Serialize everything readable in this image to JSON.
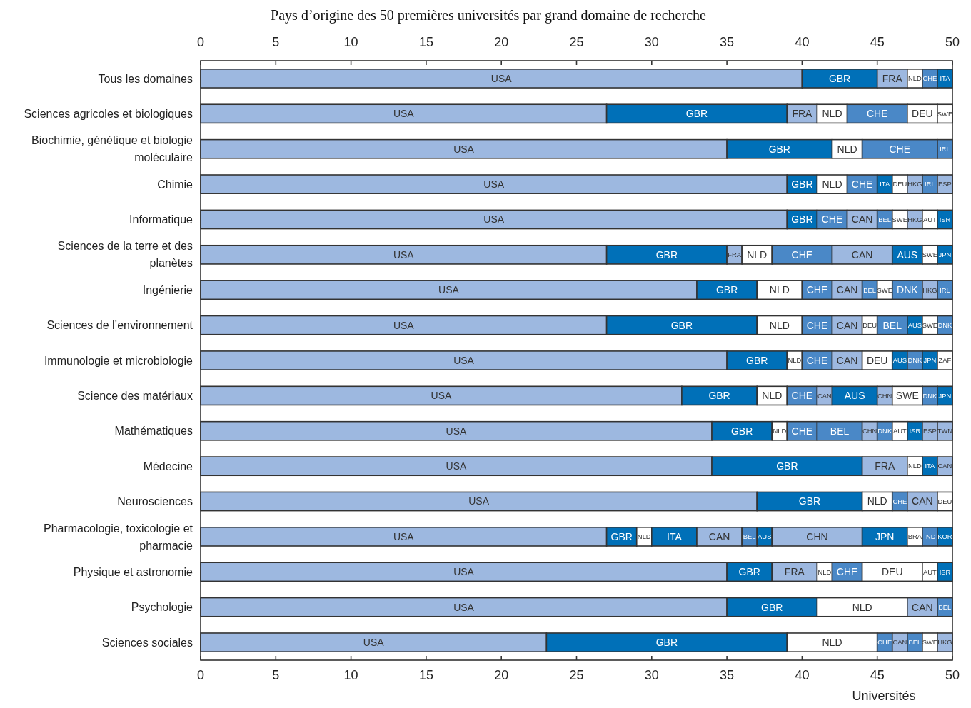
{
  "chart_data": {
    "type": "bar",
    "orientation": "horizontal",
    "stacked": true,
    "title": "Pays d’origine des 50 premières universités par grand domaine de recherche",
    "xlabel": "Universités",
    "categories": [
      "Tous les domaines",
      "Sciences agricoles et biologiques",
      "Biochimie, génétique et biologie moléculaire",
      "Chimie",
      "Informatique",
      "Sciences de la terre et des planètes",
      "Ingénierie",
      "Sciences de l’environnement",
      "Immunologie et microbiologie",
      "Science des matériaux",
      "Mathématiques",
      "Médecine",
      "Neurosciences",
      "Pharmacologie, toxicologie et pharmacie",
      "Physique et astronomie",
      "Psychologie",
      "Sciences sociales"
    ],
    "xlim": [
      0,
      50
    ],
    "xticks": [
      0,
      5,
      10,
      15,
      20,
      25,
      30,
      35,
      40,
      45,
      50
    ],
    "x2lim": [
      0,
      50
    ],
    "x2ticks": [
      0,
      5,
      10,
      15,
      20,
      25,
      30,
      35,
      40,
      45,
      50
    ],
    "grid": false,
    "series": [
      {
        "color": "#9db8e0",
        "values": [
          40,
          27,
          35,
          39,
          39,
          27,
          33,
          27,
          35,
          32,
          34,
          34,
          37,
          27,
          35,
          35,
          23
        ],
        "value_labels": [
          "USA",
          "USA",
          "USA",
          "USA",
          "USA",
          "USA",
          "USA",
          "USA",
          "USA",
          "USA",
          "USA",
          "USA",
          "USA",
          "USA",
          "USA",
          "USA",
          "USA"
        ]
      },
      {
        "color": "#0070b8",
        "values": [
          5,
          12,
          7,
          2,
          2,
          8,
          4,
          10,
          4,
          5,
          4,
          10,
          7,
          2,
          3,
          6,
          16
        ],
        "value_labels": [
          "GBR",
          "GBR",
          "GBR",
          "GBR",
          "GBR",
          "GBR",
          "GBR",
          "GBR",
          "GBR",
          "GBR",
          "GBR",
          "GBR",
          "GBR",
          "GBR",
          "GBR",
          "GBR",
          "GBR"
        ]
      },
      {
        "values": [
          2,
          2,
          2,
          2,
          2,
          1,
          3,
          3,
          1,
          2,
          1,
          3,
          2,
          1,
          3,
          6,
          6
        ],
        "value_labels": [
          "FRA",
          "FRA",
          "NLD",
          "NLD",
          "CHE",
          "FRA",
          "NLD",
          "NLD",
          "NLD",
          "NLD",
          "NLD",
          "FRA",
          "NLD",
          "NLD",
          "FRA",
          "NLD",
          "NLD"
        ],
        "colors": [
          "#9db8e0",
          "#9db8e0",
          "#ffffff",
          "#ffffff",
          "#4a88c7",
          "#9db8e0",
          "#ffffff",
          "#ffffff",
          "#ffffff",
          "#ffffff",
          "#ffffff",
          "#9db8e0",
          "#ffffff",
          "#ffffff",
          "#9db8e0",
          "#ffffff",
          "#ffffff"
        ]
      },
      {
        "values": [
          1,
          2,
          5,
          2,
          2,
          2,
          2,
          2,
          2,
          2,
          2,
          1,
          1,
          3,
          1,
          2,
          1
        ],
        "value_labels": [
          "NLD",
          "NLD",
          "CHE",
          "CHE",
          "CAN",
          "NLD",
          "CHE",
          "CHE",
          "CHE",
          "CHE",
          "CHE",
          "NLD",
          "CHE",
          "ITA",
          "NLD",
          "CAN",
          "CHE"
        ],
        "colors": [
          "#ffffff",
          "#ffffff",
          "#4a88c7",
          "#4a88c7",
          "#9db8e0",
          "#ffffff",
          "#4a88c7",
          "#4a88c7",
          "#4a88c7",
          "#4a88c7",
          "#4a88c7",
          "#ffffff",
          "#4a88c7",
          "#0070b8",
          "#ffffff",
          "#9db8e0",
          "#4a88c7"
        ]
      },
      {
        "values": [
          1,
          4,
          1,
          1,
          1,
          4,
          2,
          2,
          2,
          1,
          3,
          1,
          2,
          3,
          2,
          1,
          1
        ],
        "value_labels": [
          "CHE",
          "CHE",
          "IRL",
          "ITA",
          "BEL",
          "CHE",
          "CAN",
          "CAN",
          "CAN",
          "CAN",
          "BEL",
          "ITA",
          "CAN",
          "CAN",
          "CHE",
          "BEL",
          "CAN"
        ],
        "colors": [
          "#4a88c7",
          "#4a88c7",
          "#4a88c7",
          "#0070b8",
          "#4a88c7",
          "#4a88c7",
          "#9db8e0",
          "#9db8e0",
          "#9db8e0",
          "#9db8e0",
          "#4a88c7",
          "#0070b8",
          "#9db8e0",
          "#9db8e0",
          "#4a88c7",
          "#4a88c7",
          "#9db8e0"
        ]
      },
      {
        "values": [
          1,
          2,
          null,
          1,
          1,
          4,
          1,
          1,
          2,
          3,
          1,
          1,
          1,
          1,
          4,
          null,
          1
        ],
        "value_labels": [
          "ITA",
          "DEU",
          null,
          "DEU",
          "SWE",
          "CAN",
          "BEL",
          "DEU",
          "DEU",
          "AUS",
          "CHN",
          "CAN",
          "DEU",
          "BEL",
          "DEU",
          null,
          "BEL"
        ],
        "colors": [
          "#0070b8",
          "#ffffff",
          null,
          "#ffffff",
          "#ffffff",
          "#9db8e0",
          "#4a88c7",
          "#ffffff",
          "#ffffff",
          "#0070b8",
          "#9db8e0",
          "#9db8e0",
          "#ffffff",
          "#4a88c7",
          "#ffffff",
          null,
          "#4a88c7"
        ]
      },
      {
        "values": [
          null,
          1,
          null,
          1,
          1,
          2,
          1,
          2,
          1,
          1,
          1,
          null,
          null,
          1,
          1,
          null,
          1
        ],
        "value_labels": [
          null,
          "SWE",
          null,
          "HKG",
          "HKG",
          "AUS",
          "SWE",
          "BEL",
          "AUS",
          "CHN",
          "DNK",
          null,
          null,
          "AUS",
          "AUT",
          null,
          "SWE"
        ],
        "colors": [
          null,
          "#ffffff",
          null,
          "#9db8e0",
          "#9db8e0",
          "#0070b8",
          "#ffffff",
          "#4a88c7",
          "#0070b8",
          "#9db8e0",
          "#4a88c7",
          null,
          null,
          "#0070b8",
          "#ffffff",
          null,
          "#ffffff"
        ]
      },
      {
        "values": [
          null,
          null,
          null,
          1,
          1,
          1,
          2,
          1,
          1,
          2,
          1,
          null,
          null,
          6,
          1,
          null,
          1
        ],
        "value_labels": [
          null,
          null,
          null,
          "IRL",
          "AUT",
          "SWE",
          "DNK",
          "AUS",
          "DNK",
          "SWE",
          "AUT",
          null,
          null,
          "CHN",
          "ISR",
          null,
          "HKG"
        ],
        "colors": [
          null,
          null,
          null,
          "#4a88c7",
          "#ffffff",
          "#ffffff",
          "#4a88c7",
          "#0070b8",
          "#4a88c7",
          "#ffffff",
          "#ffffff",
          null,
          null,
          "#9db8e0",
          "#0070b8",
          null,
          "#9db8e0"
        ]
      },
      {
        "values": [
          null,
          null,
          null,
          1,
          1,
          1,
          1,
          1,
          1,
          1,
          1,
          null,
          null,
          3,
          null,
          null,
          null
        ],
        "value_labels": [
          null,
          null,
          null,
          "ESP",
          "ISR",
          "JPN",
          "HKG",
          "SWE",
          "JPN",
          "DNK",
          "ISR",
          null,
          null,
          "JPN",
          null,
          null,
          null
        ],
        "colors": [
          null,
          null,
          null,
          "#9db8e0",
          "#0070b8",
          "#0070b8",
          "#9db8e0",
          "#ffffff",
          "#0070b8",
          "#4a88c7",
          "#0070b8",
          null,
          null,
          "#0070b8",
          null,
          null,
          null
        ]
      },
      {
        "values": [
          null,
          null,
          null,
          null,
          null,
          null,
          1,
          1,
          1,
          1,
          1,
          null,
          null,
          1,
          null,
          null,
          null
        ],
        "value_labels": [
          null,
          null,
          null,
          null,
          null,
          null,
          "IRL",
          "DNK",
          "ZAF",
          "JPN",
          "ESP",
          null,
          null,
          "BRA",
          null,
          null,
          null
        ],
        "colors": [
          null,
          null,
          null,
          null,
          null,
          null,
          "#4a88c7",
          "#4a88c7",
          "#ffffff",
          "#0070b8",
          "#9db8e0",
          null,
          null,
          "#ffffff",
          null,
          null,
          null
        ]
      },
      {
        "values": [
          null,
          null,
          null,
          null,
          null,
          null,
          null,
          null,
          null,
          null,
          1,
          null,
          null,
          1,
          null,
          null,
          null
        ],
        "value_labels": [
          null,
          null,
          null,
          null,
          null,
          null,
          null,
          null,
          null,
          null,
          "TWN",
          null,
          null,
          "IND",
          null,
          null,
          null
        ],
        "colors": [
          null,
          null,
          null,
          null,
          null,
          null,
          null,
          null,
          null,
          null,
          "#9db8e0",
          null,
          null,
          "#4a88c7",
          null,
          null,
          null
        ]
      },
      {
        "values": [
          null,
          null,
          null,
          null,
          null,
          null,
          null,
          null,
          null,
          null,
          null,
          null,
          null,
          1,
          null,
          null,
          null
        ],
        "value_labels": [
          null,
          null,
          null,
          null,
          null,
          null,
          null,
          null,
          null,
          null,
          null,
          null,
          null,
          "KOR",
          null,
          null,
          null
        ],
        "colors": [
          null,
          null,
          null,
          null,
          null,
          null,
          null,
          null,
          null,
          null,
          null,
          null,
          null,
          "#0070b8",
          null,
          null,
          null
        ]
      }
    ]
  }
}
